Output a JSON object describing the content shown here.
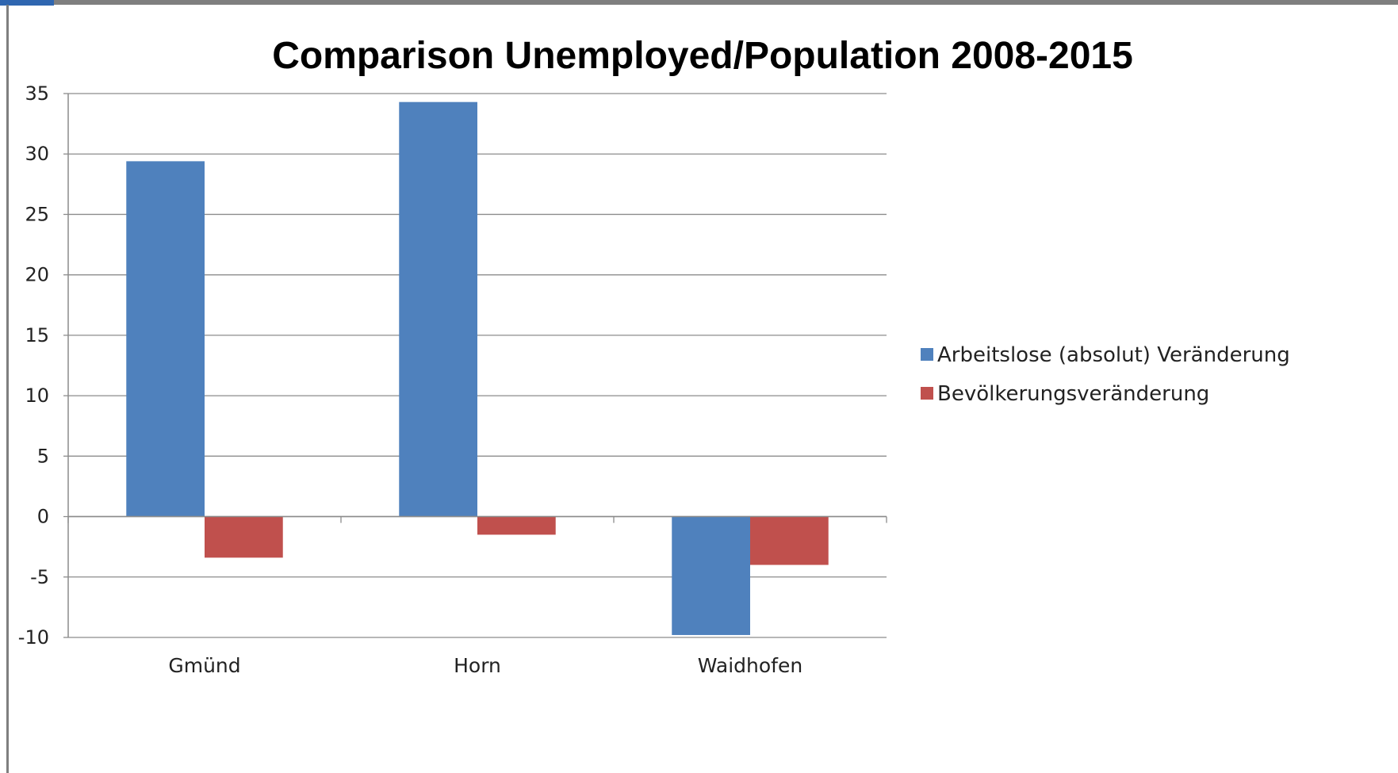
{
  "chart_data": {
    "type": "bar",
    "title": "Comparison Unemployed/Population 2008-2015",
    "xlabel": "",
    "ylabel": "",
    "categories": [
      "Gmünd",
      "Horn",
      "Waidhofen"
    ],
    "series": [
      {
        "name": "Arbeitslose (absolut) Veränderung",
        "values": [
          29.4,
          34.3,
          -9.8
        ],
        "color": "#4f81bd"
      },
      {
        "name": "Bevölkerungsveränderung",
        "values": [
          -3.4,
          -1.5,
          -4.0
        ],
        "color": "#c0504d"
      }
    ],
    "ylim": [
      -10,
      35
    ],
    "yticks": [
      -10,
      -5,
      0,
      5,
      10,
      15,
      20,
      25,
      30,
      35
    ],
    "grid": true,
    "legend_position": "right"
  }
}
